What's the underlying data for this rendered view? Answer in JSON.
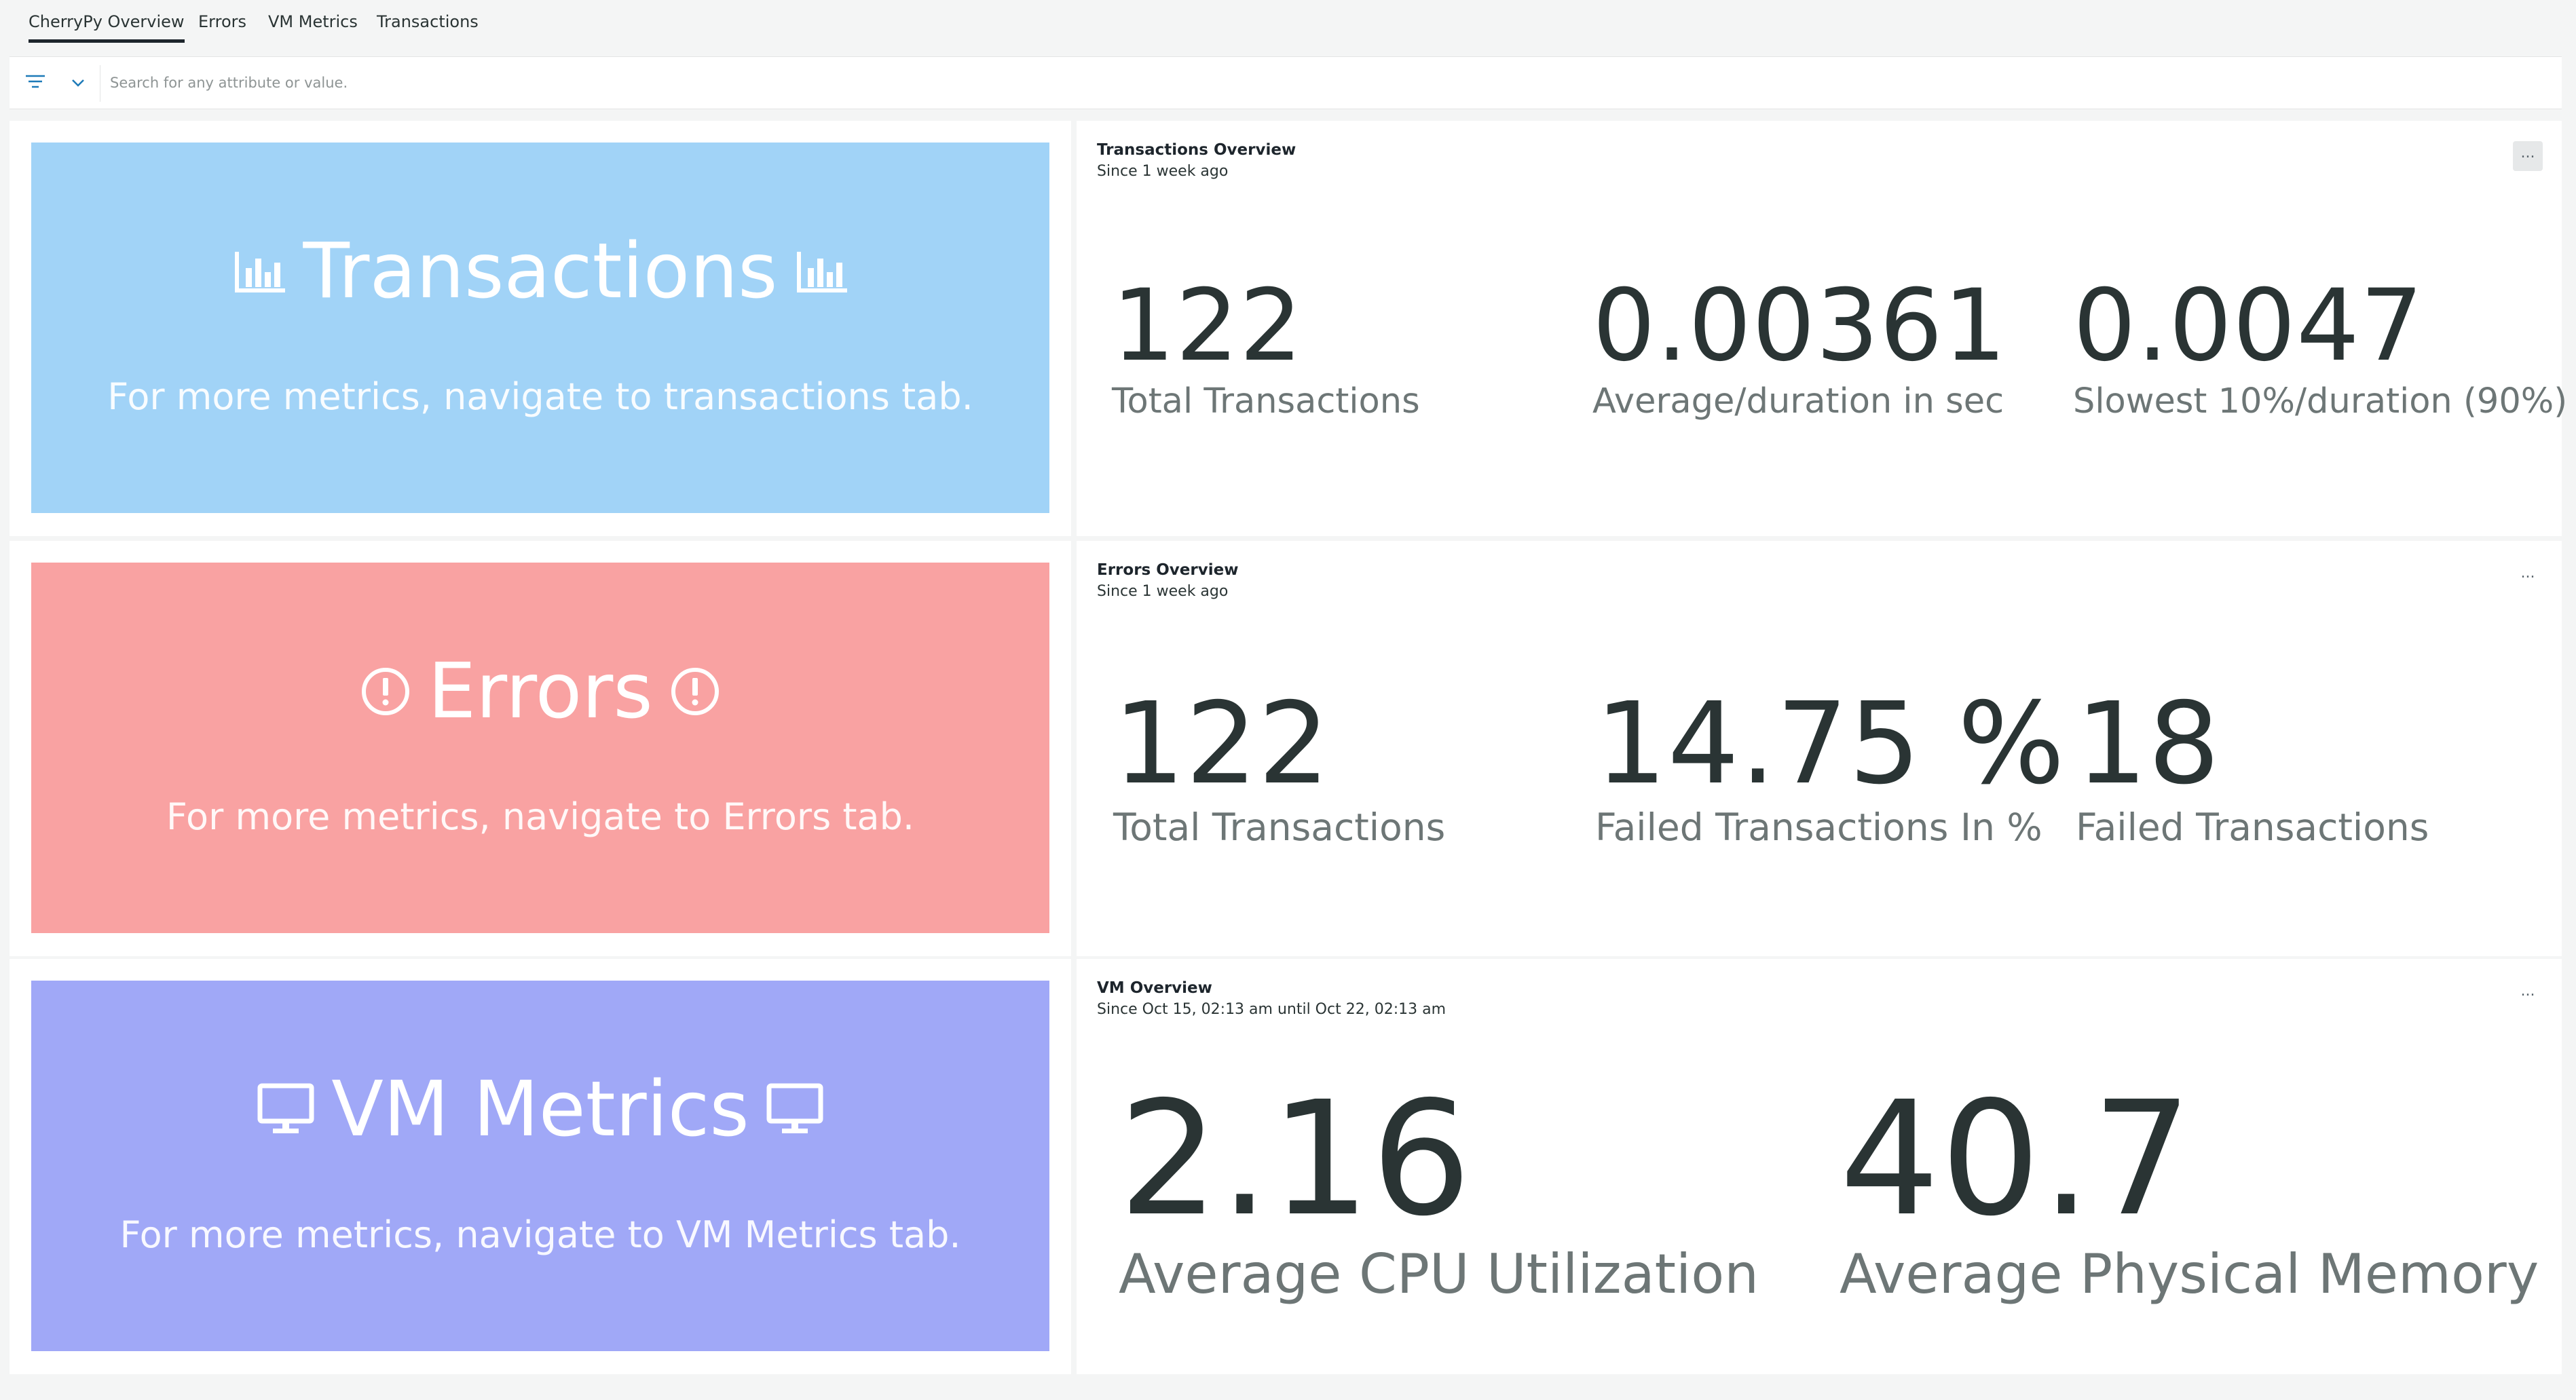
{
  "tabs": [
    {
      "label": "CherryPy Overview",
      "active": true
    },
    {
      "label": "Errors",
      "active": false
    },
    {
      "label": "VM Metrics",
      "active": false
    },
    {
      "label": "Transactions",
      "active": false
    }
  ],
  "filter": {
    "icon": "filter-icon",
    "dropdown_icon": "chevron-down-icon",
    "search_placeholder": "Search for any attribute or value."
  },
  "banners": {
    "transactions": {
      "title": "Transactions",
      "subtitle": "For more metrics, navigate to transactions tab.",
      "icon": "bar-chart-icon",
      "color": "#a1d3f7"
    },
    "errors": {
      "title": "Errors",
      "subtitle": "For more metrics, navigate to Errors tab.",
      "icon": "alert-circle-icon",
      "color": "#f9a2a2"
    },
    "vm": {
      "title": "VM Metrics",
      "subtitle": "For more metrics, navigate to VM Metrics tab.",
      "icon": "monitor-icon",
      "color": "#a0a8f7"
    }
  },
  "widgets": {
    "transactions": {
      "title": "Transactions Overview",
      "since": "Since 1 week ago",
      "menu_label": "...",
      "stats": [
        {
          "value": "122",
          "label": "Total Transactions"
        },
        {
          "value": "0.00361",
          "label": "Average/duration in sec"
        },
        {
          "value": "0.0047",
          "label": "Slowest 10%/duration (90%)"
        }
      ]
    },
    "errors": {
      "title": "Errors Overview",
      "since": "Since 1 week ago",
      "menu_label": "...",
      "stats": [
        {
          "value": "122",
          "label": "Total Transactions"
        },
        {
          "value": "14.75 %",
          "label": "Failed Transactions In %"
        },
        {
          "value": "18",
          "label": "Failed Transactions"
        }
      ]
    },
    "vm": {
      "title": "VM Overview",
      "since": "Since Oct 15, 02:13 am until Oct 22, 02:13 am",
      "menu_label": "...",
      "stats": [
        {
          "value": "2.16",
          "label": "Average CPU Utilization"
        },
        {
          "value": "40.7",
          "label": "Average Physical Memory"
        }
      ]
    }
  }
}
